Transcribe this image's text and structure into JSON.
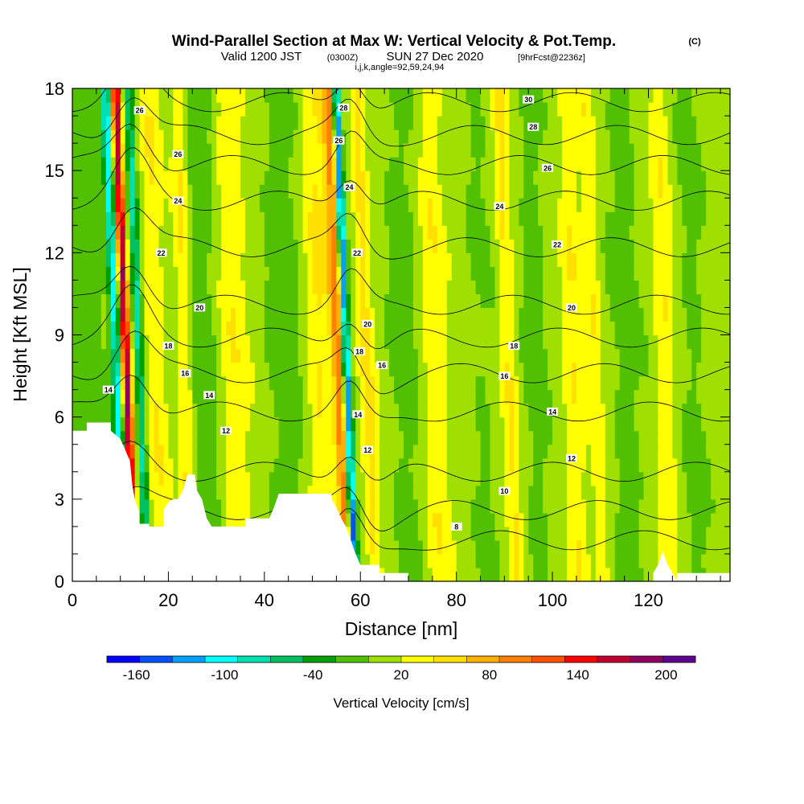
{
  "title": "Wind-Parallel Section at Max W: Vertical Velocity & Pot.Temp.",
  "title_mark": "(C)",
  "subtitle_a": "Valid 1200 JST",
  "subtitle_b": "(0300Z)",
  "subtitle_c": "SUN 27 Dec 2020",
  "subtitle_d": "[9hrFcst@2236z]",
  "subtitle_e": "i,j,k,angle=92,59,24,94",
  "chart_data": {
    "type": "heatmap",
    "xlabel": "Distance [nm]",
    "ylabel": "Height [Kft MSL]",
    "xlim": [
      0,
      137
    ],
    "ylim": [
      0,
      18
    ],
    "xticks": [
      0,
      20,
      40,
      60,
      80,
      100,
      120
    ],
    "xtick_labels": [
      "0",
      "20",
      "40",
      "60",
      "80",
      "100",
      "120"
    ],
    "yticks": [
      0,
      3,
      6,
      9,
      12,
      15,
      18
    ],
    "ytick_labels": [
      "0",
      "3",
      "6",
      "9",
      "12",
      "15",
      "18"
    ],
    "colorbar": {
      "label": "Vertical Velocity [cm/s]",
      "tick_labels": [
        "-160",
        "-100",
        "-40",
        "20",
        "80",
        "140",
        "200"
      ],
      "tick_values": [
        -160,
        -100,
        -40,
        20,
        80,
        140,
        200
      ],
      "range": [
        -180,
        220
      ],
      "colors": [
        "#0000ff",
        "#0050ff",
        "#00a0ff",
        "#00ffff",
        "#00e0b0",
        "#00c060",
        "#00a000",
        "#50c000",
        "#a0e000",
        "#ffff00",
        "#ffe000",
        "#ffb000",
        "#ff8000",
        "#ff5000",
        "#ff0000",
        "#c00030",
        "#900060",
        "#600090"
      ]
    },
    "terrain": [
      [
        0,
        5.5
      ],
      [
        0.5,
        5.5
      ],
      [
        3,
        5.5
      ],
      [
        3,
        5.8
      ],
      [
        8,
        5.8
      ],
      [
        8,
        5.5
      ],
      [
        10,
        5.2
      ],
      [
        11,
        4.8
      ],
      [
        12,
        4.4
      ],
      [
        12.5,
        3.5
      ],
      [
        13,
        3
      ],
      [
        14,
        2.5
      ],
      [
        14,
        2.1
      ],
      [
        16,
        2.1
      ],
      [
        16,
        2.0
      ],
      [
        19,
        2.0
      ],
      [
        19,
        2.6
      ],
      [
        20,
        2.9
      ],
      [
        21,
        3
      ],
      [
        22,
        3
      ],
      [
        23,
        3.3
      ],
      [
        24,
        3.9
      ],
      [
        25.5,
        3.9
      ],
      [
        26,
        3.3
      ],
      [
        27,
        3
      ],
      [
        28,
        2.3
      ],
      [
        29,
        2.0
      ],
      [
        36,
        2.0
      ],
      [
        36,
        2.3
      ],
      [
        41,
        2.3
      ],
      [
        42,
        2.7
      ],
      [
        43,
        3.2
      ],
      [
        54,
        3.2
      ],
      [
        54,
        3.0
      ],
      [
        55,
        2.7
      ],
      [
        56,
        2.3
      ],
      [
        57,
        2.0
      ],
      [
        58,
        1.5
      ],
      [
        59,
        1.0
      ],
      [
        60,
        0.6
      ],
      [
        64,
        0.6
      ],
      [
        64,
        0.3
      ],
      [
        70,
        0.3
      ],
      [
        70,
        0
      ],
      [
        121,
        0
      ],
      [
        121,
        0.3
      ],
      [
        122,
        0.6
      ],
      [
        123,
        1.1
      ],
      [
        124,
        0.6
      ],
      [
        125,
        0.3
      ],
      [
        126,
        0
      ],
      [
        126,
        0.3
      ],
      [
        137,
        0.3
      ]
    ],
    "features": [
      {
        "x": 12.3,
        "w": 0.9,
        "w_cm_s": 170
      },
      {
        "x": 10.2,
        "w": 0.9,
        "w_cm_s": -110
      },
      {
        "x": 15.0,
        "w": 0.9,
        "w_cm_s": -85
      },
      {
        "x": 56.5,
        "w": 1.4,
        "w_cm_s": 85
      },
      {
        "x": 58.2,
        "w": 0.8,
        "w_cm_s": -160
      },
      {
        "x": 62.5,
        "w": 1.5,
        "w_cm_s": 40
      },
      {
        "x": 92.0,
        "w": 1.5,
        "w_cm_s": 35
      },
      {
        "x": 110.0,
        "w": 1.5,
        "w_cm_s": 30
      }
    ],
    "theta_contours": [
      {
        "value": 8,
        "label": "8",
        "y0": 1.5
      },
      {
        "value": 10,
        "label": "10",
        "y0": 2.6
      },
      {
        "value": 12,
        "label": "12",
        "y0": 4.0
      },
      {
        "value": 14,
        "label": "14",
        "y0": 6.2
      },
      {
        "value": 16,
        "label": "16",
        "y0": 7.6
      },
      {
        "value": 18,
        "label": "18",
        "y0": 8.9
      },
      {
        "value": 20,
        "label": "20",
        "y0": 10.1
      },
      {
        "value": 22,
        "label": "22",
        "y0": 12.2
      },
      {
        "value": 24,
        "label": "24",
        "y0": 13.9
      },
      {
        "value": 26,
        "label": "26",
        "y0": 15.2
      },
      {
        "value": 28,
        "label": "28",
        "y0": 16.3
      },
      {
        "value": 30,
        "label": "30",
        "y0": 17.5
      }
    ],
    "contour_labels": [
      {
        "text": "26",
        "x": 14,
        "y": 17.2
      },
      {
        "text": "26",
        "x": 22,
        "y": 15.6
      },
      {
        "text": "24",
        "x": 22,
        "y": 13.9
      },
      {
        "text": "22",
        "x": 18.5,
        "y": 12.0
      },
      {
        "text": "20",
        "x": 26.5,
        "y": 10.0
      },
      {
        "text": "18",
        "x": 20,
        "y": 8.6
      },
      {
        "text": "16",
        "x": 23.5,
        "y": 7.6
      },
      {
        "text": "14",
        "x": 28.5,
        "y": 6.8
      },
      {
        "text": "14",
        "x": 7.5,
        "y": 7.0
      },
      {
        "text": "12",
        "x": 32,
        "y": 5.5
      },
      {
        "text": "28",
        "x": 56.5,
        "y": 17.3
      },
      {
        "text": "26",
        "x": 55.5,
        "y": 16.1
      },
      {
        "text": "24",
        "x": 57.7,
        "y": 14.4
      },
      {
        "text": "22",
        "x": 59.3,
        "y": 12.0
      },
      {
        "text": "20",
        "x": 61.5,
        "y": 9.4
      },
      {
        "text": "18",
        "x": 59.8,
        "y": 8.4
      },
      {
        "text": "16",
        "x": 64.5,
        "y": 7.9
      },
      {
        "text": "14",
        "x": 59.5,
        "y": 6.1
      },
      {
        "text": "12",
        "x": 61.5,
        "y": 4.8
      },
      {
        "text": "30",
        "x": 95,
        "y": 17.6
      },
      {
        "text": "28",
        "x": 96,
        "y": 16.6
      },
      {
        "text": "26",
        "x": 99,
        "y": 15.1
      },
      {
        "text": "24",
        "x": 89,
        "y": 13.7
      },
      {
        "text": "22",
        "x": 101,
        "y": 12.3
      },
      {
        "text": "20",
        "x": 104,
        "y": 10.0
      },
      {
        "text": "18",
        "x": 92,
        "y": 8.6
      },
      {
        "text": "16",
        "x": 90,
        "y": 7.5
      },
      {
        "text": "14",
        "x": 100,
        "y": 6.2
      },
      {
        "text": "12",
        "x": 104,
        "y": 4.5
      },
      {
        "text": "10",
        "x": 90,
        "y": 3.3
      },
      {
        "text": "8",
        "x": 80,
        "y": 2.0
      }
    ]
  }
}
